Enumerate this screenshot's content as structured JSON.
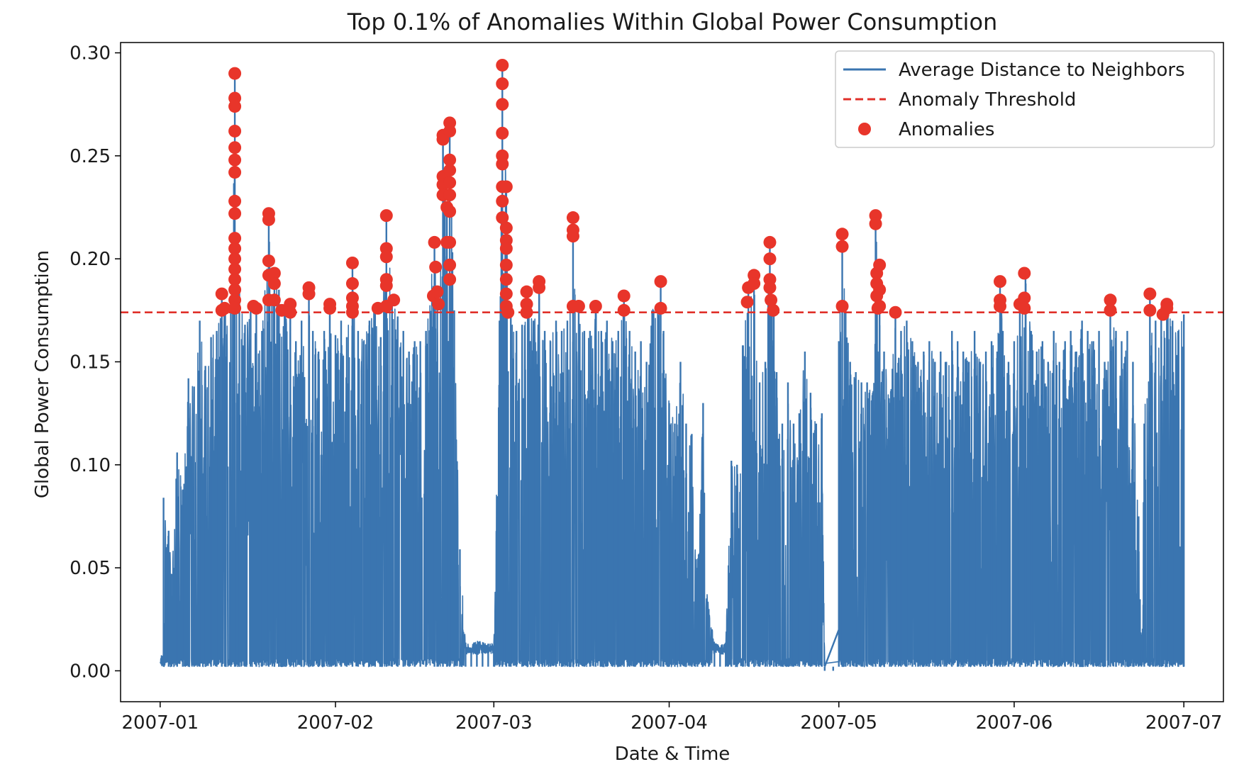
{
  "chart_data": {
    "type": "line",
    "title": "Top 0.1% of Anomalies Within Global Power Consumption",
    "xlabel": "Date & Time",
    "ylabel": "Global Power Consumption",
    "ylim": [
      -0.015,
      0.305
    ],
    "xlim_days": [
      -7,
      188
    ],
    "x_ticks": [
      {
        "day": 0,
        "label": "2007-01"
      },
      {
        "day": 31,
        "label": "2007-02"
      },
      {
        "day": 59,
        "label": "2007-03"
      },
      {
        "day": 90,
        "label": "2007-04"
      },
      {
        "day": 120,
        "label": "2007-05"
      },
      {
        "day": 151,
        "label": "2007-06"
      },
      {
        "day": 181,
        "label": "2007-07"
      }
    ],
    "y_ticks": [
      {
        "value": 0.0,
        "label": "0.00"
      },
      {
        "value": 0.05,
        "label": "0.05"
      },
      {
        "value": 0.1,
        "label": "0.10"
      },
      {
        "value": 0.15,
        "label": "0.15"
      },
      {
        "value": 0.2,
        "label": "0.20"
      },
      {
        "value": 0.25,
        "label": "0.25"
      },
      {
        "value": 0.3,
        "label": "0.30"
      }
    ],
    "threshold": 0.174,
    "legend": {
      "position": "top-right",
      "entries": [
        {
          "label": "Average Distance to Neighbors",
          "style": "line"
        },
        {
          "label": "Anomaly Threshold",
          "style": "dashed"
        },
        {
          "label": "Anomalies",
          "style": "marker"
        }
      ]
    },
    "colors": {
      "series": "#3a75b0",
      "threshold": "#e0302a",
      "anomaly": "#e8352a"
    },
    "series": [
      {
        "name": "Average Distance to Neighbors",
        "peaks": [
          [
            0.6,
            0.084
          ],
          [
            1.5,
            0.068
          ],
          [
            2.0,
            0.047
          ],
          [
            3.0,
            0.106
          ],
          [
            4.0,
            0.088
          ],
          [
            5.0,
            0.142
          ],
          [
            6.0,
            0.138
          ],
          [
            7.0,
            0.17
          ],
          [
            8.0,
            0.148
          ],
          [
            9.0,
            0.162
          ],
          [
            10.0,
            0.165
          ],
          [
            10.9,
            0.183
          ],
          [
            11.5,
            0.176
          ],
          [
            12.5,
            0.177
          ],
          [
            13.2,
            0.29
          ],
          [
            14.0,
            0.185
          ],
          [
            15.0,
            0.168
          ],
          [
            16.0,
            0.178
          ],
          [
            17.0,
            0.176
          ],
          [
            18.0,
            0.165
          ],
          [
            19.2,
            0.222
          ],
          [
            20.2,
            0.193
          ],
          [
            21.0,
            0.185
          ],
          [
            22.0,
            0.176
          ],
          [
            23.0,
            0.178
          ],
          [
            24.0,
            0.16
          ],
          [
            25.0,
            0.17
          ],
          [
            26.3,
            0.186
          ],
          [
            27.0,
            0.165
          ],
          [
            28.0,
            0.155
          ],
          [
            29.0,
            0.165
          ],
          [
            30.0,
            0.178
          ],
          [
            31.0,
            0.163
          ],
          [
            32.0,
            0.17
          ],
          [
            33.0,
            0.162
          ],
          [
            34.0,
            0.198
          ],
          [
            35.0,
            0.165
          ],
          [
            36.0,
            0.16
          ],
          [
            37.0,
            0.17
          ],
          [
            38.0,
            0.176
          ],
          [
            39.0,
            0.162
          ],
          [
            40.0,
            0.221
          ],
          [
            41.0,
            0.18
          ],
          [
            42.0,
            0.172
          ],
          [
            43.0,
            0.165
          ],
          [
            44.0,
            0.155
          ],
          [
            45.0,
            0.16
          ],
          [
            46.0,
            0.16
          ],
          [
            47.0,
            0.165
          ],
          [
            48.5,
            0.21
          ],
          [
            49.0,
            0.18
          ],
          [
            50.0,
            0.26
          ],
          [
            50.7,
            0.225
          ],
          [
            51.2,
            0.266
          ],
          [
            52.0,
            0.175
          ],
          [
            53.0,
            0.059
          ],
          [
            54.0,
            0.012
          ],
          [
            55.0,
            0.011
          ],
          [
            56.0,
            0.013
          ],
          [
            57.0,
            0.012
          ],
          [
            58.0,
            0.011
          ],
          [
            59.0,
            0.012
          ],
          [
            60.0,
            0.17
          ],
          [
            60.5,
            0.294
          ],
          [
            61.2,
            0.235
          ],
          [
            62.0,
            0.174
          ],
          [
            63.0,
            0.165
          ],
          [
            64.0,
            0.168
          ],
          [
            65.0,
            0.184
          ],
          [
            66.0,
            0.17
          ],
          [
            67.0,
            0.189
          ],
          [
            68.0,
            0.165
          ],
          [
            69.0,
            0.16
          ],
          [
            70.0,
            0.17
          ],
          [
            71.0,
            0.165
          ],
          [
            72.0,
            0.17
          ],
          [
            73.0,
            0.22
          ],
          [
            74.0,
            0.177
          ],
          [
            75.0,
            0.165
          ],
          [
            76.0,
            0.165
          ],
          [
            77.0,
            0.176
          ],
          [
            78.0,
            0.165
          ],
          [
            79.0,
            0.17
          ],
          [
            80.0,
            0.16
          ],
          [
            81.0,
            0.165
          ],
          [
            82.0,
            0.182
          ],
          [
            83.0,
            0.165
          ],
          [
            84.0,
            0.155
          ],
          [
            85.0,
            0.16
          ],
          [
            86.0,
            0.15
          ],
          [
            87.0,
            0.175
          ],
          [
            88.5,
            0.189
          ],
          [
            89.0,
            0.165
          ],
          [
            90.0,
            0.13
          ],
          [
            91.0,
            0.12
          ],
          [
            92.0,
            0.15
          ],
          [
            93.0,
            0.12
          ],
          [
            94.0,
            0.115
          ],
          [
            95.0,
            0.05
          ],
          [
            96.0,
            0.13
          ],
          [
            97.0,
            0.03
          ],
          [
            98.0,
            0.012
          ],
          [
            99.0,
            0.01
          ],
          [
            100.0,
            0.012
          ],
          [
            101.0,
            0.102
          ],
          [
            102.0,
            0.1
          ],
          [
            103.0,
            0.158
          ],
          [
            104.0,
            0.183
          ],
          [
            105.0,
            0.192
          ],
          [
            106.0,
            0.14
          ],
          [
            107.0,
            0.15
          ],
          [
            107.8,
            0.208
          ],
          [
            108.5,
            0.18
          ],
          [
            109.0,
            0.145
          ],
          [
            110.0,
            0.12
          ],
          [
            111.0,
            0.14
          ],
          [
            112.0,
            0.12
          ],
          [
            113.0,
            0.125
          ],
          [
            114.0,
            0.155
          ],
          [
            115.0,
            0.135
          ],
          [
            116.0,
            0.12
          ],
          [
            117.0,
            0.125
          ],
          [
            117.5,
            0.0
          ],
          [
            119.0,
            0.0
          ],
          [
            120.0,
            0.16
          ],
          [
            120.6,
            0.212
          ],
          [
            121.2,
            0.177
          ],
          [
            122.0,
            0.15
          ],
          [
            123.0,
            0.145
          ],
          [
            124.0,
            0.14
          ],
          [
            125.0,
            0.14
          ],
          [
            126.0,
            0.135
          ],
          [
            126.5,
            0.221
          ],
          [
            127.2,
            0.197
          ],
          [
            128.0,
            0.155
          ],
          [
            129.0,
            0.13
          ],
          [
            130.0,
            0.175
          ],
          [
            131.0,
            0.165
          ],
          [
            132.0,
            0.17
          ],
          [
            133.0,
            0.16
          ],
          [
            134.0,
            0.15
          ],
          [
            135.0,
            0.155
          ],
          [
            136.0,
            0.16
          ],
          [
            137.0,
            0.15
          ],
          [
            138.0,
            0.155
          ],
          [
            139.0,
            0.15
          ],
          [
            140.0,
            0.165
          ],
          [
            141.0,
            0.16
          ],
          [
            142.0,
            0.155
          ],
          [
            143.0,
            0.15
          ],
          [
            144.0,
            0.165
          ],
          [
            145.0,
            0.15
          ],
          [
            146.0,
            0.155
          ],
          [
            147.0,
            0.16
          ],
          [
            148.0,
            0.155
          ],
          [
            148.5,
            0.189
          ],
          [
            149.0,
            0.165
          ],
          [
            150.0,
            0.15
          ],
          [
            151.0,
            0.16
          ],
          [
            152.0,
            0.178
          ],
          [
            153.0,
            0.193
          ],
          [
            154.0,
            0.165
          ],
          [
            155.0,
            0.155
          ],
          [
            156.0,
            0.16
          ],
          [
            157.0,
            0.15
          ],
          [
            158.0,
            0.165
          ],
          [
            159.0,
            0.15
          ],
          [
            160.0,
            0.16
          ],
          [
            161.0,
            0.165
          ],
          [
            162.0,
            0.155
          ],
          [
            163.0,
            0.17
          ],
          [
            164.0,
            0.165
          ],
          [
            165.0,
            0.16
          ],
          [
            166.0,
            0.165
          ],
          [
            167.0,
            0.15
          ],
          [
            168.0,
            0.18
          ],
          [
            169.0,
            0.165
          ],
          [
            170.0,
            0.16
          ],
          [
            171.0,
            0.165
          ],
          [
            172.0,
            0.15
          ],
          [
            173.0,
            0.075
          ],
          [
            173.5,
            0.01
          ],
          [
            174.0,
            0.12
          ],
          [
            175.0,
            0.182
          ],
          [
            176.0,
            0.17
          ],
          [
            177.0,
            0.173
          ],
          [
            178.0,
            0.178
          ],
          [
            179.0,
            0.17
          ],
          [
            180.0,
            0.165
          ],
          [
            181.0,
            0.173
          ]
        ]
      }
    ],
    "anomalies": [
      [
        10.9,
        0.183
      ],
      [
        10.9,
        0.175
      ],
      [
        11.4,
        0.176
      ],
      [
        13.2,
        0.29
      ],
      [
        13.2,
        0.278
      ],
      [
        13.2,
        0.274
      ],
      [
        13.2,
        0.262
      ],
      [
        13.2,
        0.254
      ],
      [
        13.2,
        0.248
      ],
      [
        13.2,
        0.242
      ],
      [
        13.2,
        0.228
      ],
      [
        13.2,
        0.222
      ],
      [
        13.2,
        0.21
      ],
      [
        13.2,
        0.205
      ],
      [
        13.2,
        0.2
      ],
      [
        13.2,
        0.195
      ],
      [
        13.2,
        0.19
      ],
      [
        13.2,
        0.185
      ],
      [
        13.2,
        0.18
      ],
      [
        13.2,
        0.176
      ],
      [
        16.5,
        0.177
      ],
      [
        17.0,
        0.176
      ],
      [
        19.2,
        0.222
      ],
      [
        19.2,
        0.219
      ],
      [
        19.2,
        0.199
      ],
      [
        19.2,
        0.192
      ],
      [
        19.2,
        0.18
      ],
      [
        20.2,
        0.193
      ],
      [
        20.2,
        0.188
      ],
      [
        20.2,
        0.18
      ],
      [
        21.5,
        0.175
      ],
      [
        23.0,
        0.178
      ],
      [
        23.0,
        0.174
      ],
      [
        26.3,
        0.186
      ],
      [
        26.3,
        0.183
      ],
      [
        30.0,
        0.178
      ],
      [
        30.0,
        0.176
      ],
      [
        34.0,
        0.198
      ],
      [
        34.0,
        0.188
      ],
      [
        34.0,
        0.181
      ],
      [
        34.0,
        0.177
      ],
      [
        34.0,
        0.174
      ],
      [
        38.5,
        0.176
      ],
      [
        40.0,
        0.221
      ],
      [
        40.0,
        0.205
      ],
      [
        40.0,
        0.201
      ],
      [
        40.0,
        0.19
      ],
      [
        40.0,
        0.187
      ],
      [
        40.0,
        0.177
      ],
      [
        41.3,
        0.18
      ],
      [
        48.3,
        0.182
      ],
      [
        48.5,
        0.208
      ],
      [
        48.7,
        0.196
      ],
      [
        49.0,
        0.184
      ],
      [
        49.2,
        0.178
      ],
      [
        50.0,
        0.26
      ],
      [
        50.0,
        0.258
      ],
      [
        50.0,
        0.24
      ],
      [
        50.0,
        0.236
      ],
      [
        50.0,
        0.231
      ],
      [
        50.7,
        0.225
      ],
      [
        50.7,
        0.208
      ],
      [
        51.2,
        0.266
      ],
      [
        51.2,
        0.262
      ],
      [
        51.2,
        0.248
      ],
      [
        51.2,
        0.243
      ],
      [
        51.2,
        0.237
      ],
      [
        51.2,
        0.231
      ],
      [
        51.2,
        0.223
      ],
      [
        51.2,
        0.208
      ],
      [
        51.2,
        0.197
      ],
      [
        51.2,
        0.19
      ],
      [
        60.5,
        0.294
      ],
      [
        60.5,
        0.285
      ],
      [
        60.5,
        0.275
      ],
      [
        60.5,
        0.261
      ],
      [
        60.5,
        0.25
      ],
      [
        60.5,
        0.246
      ],
      [
        60.5,
        0.235
      ],
      [
        60.5,
        0.228
      ],
      [
        60.5,
        0.22
      ],
      [
        61.2,
        0.235
      ],
      [
        61.2,
        0.215
      ],
      [
        61.2,
        0.209
      ],
      [
        61.2,
        0.205
      ],
      [
        61.2,
        0.197
      ],
      [
        61.2,
        0.19
      ],
      [
        61.2,
        0.183
      ],
      [
        61.2,
        0.177
      ],
      [
        61.5,
        0.174
      ],
      [
        64.8,
        0.184
      ],
      [
        64.8,
        0.178
      ],
      [
        64.8,
        0.174
      ],
      [
        67.0,
        0.189
      ],
      [
        67.0,
        0.186
      ],
      [
        73.0,
        0.22
      ],
      [
        73.0,
        0.214
      ],
      [
        73.0,
        0.211
      ],
      [
        73.0,
        0.177
      ],
      [
        74.0,
        0.177
      ],
      [
        77.0,
        0.177
      ],
      [
        82.0,
        0.182
      ],
      [
        82.0,
        0.175
      ],
      [
        88.5,
        0.189
      ],
      [
        88.5,
        0.176
      ],
      [
        103.8,
        0.179
      ],
      [
        104.0,
        0.186
      ],
      [
        105.0,
        0.192
      ],
      [
        105.0,
        0.188
      ],
      [
        107.8,
        0.208
      ],
      [
        107.8,
        0.2
      ],
      [
        107.8,
        0.19
      ],
      [
        107.8,
        0.186
      ],
      [
        108.0,
        0.18
      ],
      [
        108.4,
        0.175
      ],
      [
        120.6,
        0.212
      ],
      [
        120.6,
        0.206
      ],
      [
        120.6,
        0.177
      ],
      [
        126.5,
        0.221
      ],
      [
        126.5,
        0.217
      ],
      [
        126.7,
        0.193
      ],
      [
        126.7,
        0.188
      ],
      [
        126.7,
        0.182
      ],
      [
        126.9,
        0.176
      ],
      [
        127.2,
        0.197
      ],
      [
        127.2,
        0.185
      ],
      [
        127.2,
        0.177
      ],
      [
        130.0,
        0.174
      ],
      [
        148.5,
        0.189
      ],
      [
        148.5,
        0.18
      ],
      [
        148.5,
        0.177
      ],
      [
        152.0,
        0.178
      ],
      [
        152.8,
        0.193
      ],
      [
        152.8,
        0.181
      ],
      [
        152.8,
        0.176
      ],
      [
        168.0,
        0.18
      ],
      [
        168.0,
        0.175
      ],
      [
        175.0,
        0.183
      ],
      [
        175.0,
        0.175
      ],
      [
        177.3,
        0.173
      ],
      [
        178.0,
        0.178
      ],
      [
        178.0,
        0.176
      ]
    ]
  }
}
